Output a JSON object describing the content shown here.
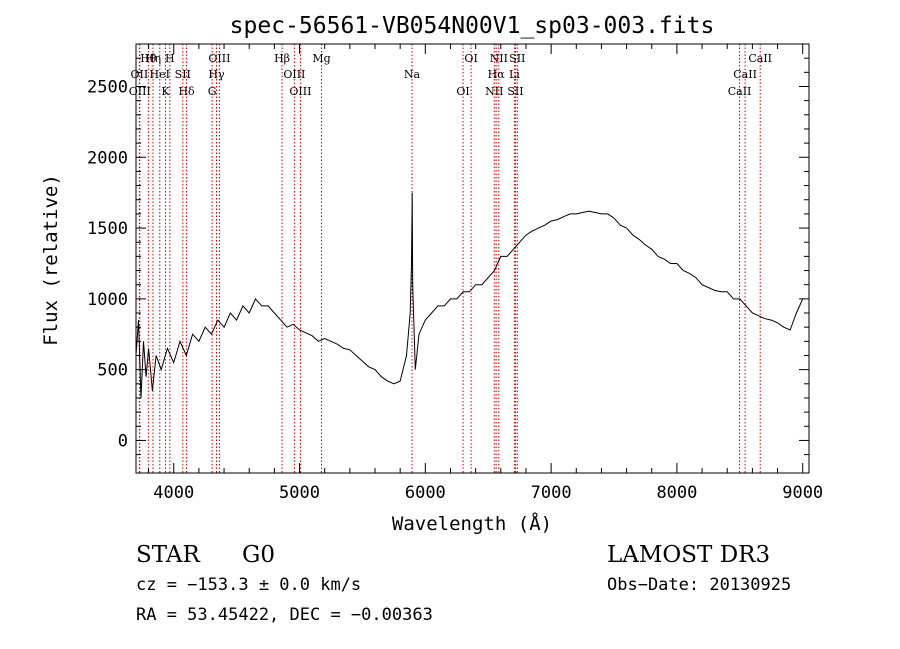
{
  "chart_data": {
    "type": "line",
    "title": "spec-56561-VB054N00V1_sp03-003.fits",
    "xlabel": "Wavelength (Å)",
    "ylabel": "Flux (relative)",
    "xlim": [
      3700,
      9050
    ],
    "ylim": [
      -230,
      2800
    ],
    "x_ticks": [
      4000,
      5000,
      6000,
      7000,
      8000,
      9000
    ],
    "x_tick_labels": [
      "4000",
      "5000",
      "6000",
      "7000",
      "8000",
      "9000"
    ],
    "y_ticks": [
      0,
      500,
      1000,
      1500,
      2000,
      2500
    ],
    "y_tick_labels": [
      "0",
      "500",
      "1000",
      "1500",
      "2000",
      "2500"
    ],
    "series": [
      {
        "name": "flux",
        "color": "#000000",
        "x": [
          3700,
          3720,
          3740,
          3760,
          3780,
          3800,
          3830,
          3860,
          3900,
          3950,
          4000,
          4050,
          4100,
          4150,
          4200,
          4250,
          4300,
          4350,
          4400,
          4450,
          4500,
          4550,
          4600,
          4650,
          4700,
          4750,
          4800,
          4850,
          4900,
          4950,
          5000,
          5050,
          5100,
          5150,
          5200,
          5250,
          5300,
          5350,
          5400,
          5450,
          5500,
          5550,
          5600,
          5650,
          5700,
          5750,
          5800,
          5850,
          5880,
          5890,
          5896,
          5900,
          5920,
          5950,
          6000,
          6050,
          6100,
          6150,
          6200,
          6250,
          6300,
          6350,
          6400,
          6450,
          6500,
          6550,
          6600,
          6650,
          6700,
          6750,
          6800,
          6850,
          6900,
          6950,
          7000,
          7050,
          7100,
          7150,
          7200,
          7250,
          7300,
          7350,
          7400,
          7450,
          7500,
          7550,
          7600,
          7650,
          7700,
          7750,
          7800,
          7850,
          7900,
          7950,
          8000,
          8050,
          8100,
          8150,
          8200,
          8250,
          8300,
          8350,
          8400,
          8450,
          8500,
          8550,
          8600,
          8650,
          8700,
          8750,
          8800,
          8850,
          8900,
          8950,
          9000
        ],
        "y": [
          600,
          850,
          300,
          700,
          450,
          650,
          350,
          600,
          500,
          650,
          550,
          700,
          600,
          750,
          700,
          800,
          750,
          850,
          800,
          900,
          850,
          950,
          900,
          1000,
          950,
          950,
          900,
          850,
          800,
          820,
          780,
          760,
          740,
          700,
          720,
          700,
          680,
          650,
          640,
          600,
          560,
          520,
          500,
          450,
          420,
          400,
          420,
          600,
          900,
          1250,
          1750,
          1100,
          500,
          750,
          850,
          900,
          950,
          950,
          1000,
          1000,
          1050,
          1050,
          1100,
          1100,
          1150,
          1200,
          1300,
          1300,
          1350,
          1400,
          1450,
          1480,
          1500,
          1520,
          1550,
          1560,
          1580,
          1600,
          1600,
          1610,
          1620,
          1610,
          1600,
          1600,
          1570,
          1520,
          1500,
          1450,
          1420,
          1380,
          1350,
          1300,
          1280,
          1250,
          1250,
          1200,
          1180,
          1150,
          1100,
          1080,
          1060,
          1050,
          1050,
          1000,
          1000,
          950,
          900,
          880,
          860,
          850,
          830,
          800,
          780,
          900,
          1000
        ]
      }
    ],
    "lines": [
      {
        "name": "Hθ",
        "wavelength": 3798
      },
      {
        "name": "OII",
        "wavelength": 3727
      },
      {
        "name": "OIII",
        "wavelength": 3730
      },
      {
        "name": "Hη",
        "wavelength": 3835
      },
      {
        "name": "HeI",
        "wavelength": 3889
      },
      {
        "name": "K",
        "wavelength": 3934
      },
      {
        "name": "H",
        "wavelength": 3969
      },
      {
        "name": "SII",
        "wavelength": 4072
      },
      {
        "name": "Hδ",
        "wavelength": 4102
      },
      {
        "name": "OIII",
        "wavelength": 4363
      },
      {
        "name": "Hγ",
        "wavelength": 4340
      },
      {
        "name": "G",
        "wavelength": 4305
      },
      {
        "name": "Hβ",
        "wavelength": 4861
      },
      {
        "name": "OIII",
        "wavelength": 4959
      },
      {
        "name": "OIII",
        "wavelength": 5007
      },
      {
        "name": "Mg",
        "wavelength": 5175
      },
      {
        "name": "Na",
        "wavelength": 5894
      },
      {
        "name": "OI",
        "wavelength": 6300
      },
      {
        "name": "OI",
        "wavelength": 6364
      },
      {
        "name": "Hα",
        "wavelength": 6563
      },
      {
        "name": "NII",
        "wavelength": 6548
      },
      {
        "name": "NII",
        "wavelength": 6584
      },
      {
        "name": "Li",
        "wavelength": 6708
      },
      {
        "name": "SII",
        "wavelength": 6717
      },
      {
        "name": "SII",
        "wavelength": 6731
      },
      {
        "name": "CaII",
        "wavelength": 8542
      },
      {
        "name": "CaII",
        "wavelength": 8498
      },
      {
        "name": "CaII",
        "wavelength": 8662
      }
    ]
  },
  "info": {
    "class": "STAR",
    "subclass": "G0",
    "survey": "LAMOST DR3",
    "cz": "cz = −153.3 ± 0.0 km/s",
    "obs_date": "Obs−Date: 20130925",
    "coords": "RA =  53.45422, DEC =  −0.00363"
  }
}
